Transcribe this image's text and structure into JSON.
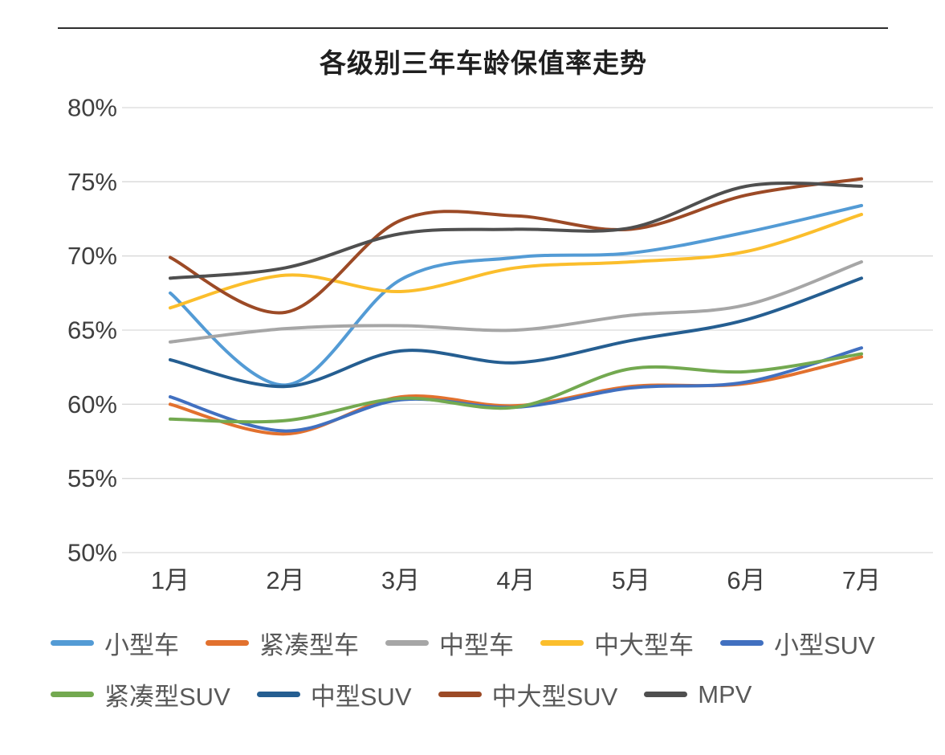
{
  "chart_data": {
    "type": "line",
    "title": "各级别三年车龄保值率走势",
    "categories": [
      "1月",
      "2月",
      "3月",
      "4月",
      "5月",
      "6月",
      "7月"
    ],
    "y_ticks": [
      {
        "label": "80%",
        "value": 80
      },
      {
        "label": "75%",
        "value": 75
      },
      {
        "label": "70%",
        "value": 70
      },
      {
        "label": "65%",
        "value": 65
      },
      {
        "label": "60%",
        "value": 60
      },
      {
        "label": "55%",
        "value": 55
      },
      {
        "label": "50%",
        "value": 50
      }
    ],
    "ylim": [
      50,
      80
    ],
    "unit": "%",
    "grid": "horizontal",
    "legend_position": "bottom",
    "legend_rows": [
      [
        0,
        1,
        2,
        3,
        4
      ],
      [
        5,
        6,
        7,
        8
      ]
    ],
    "series": [
      {
        "name": "小型车",
        "color": "#539BD5",
        "values": [
          67.5,
          61.3,
          68.4,
          69.9,
          70.2,
          71.6,
          73.4
        ]
      },
      {
        "name": "紧凑型车",
        "color": "#E2712E",
        "values": [
          60.0,
          58.0,
          60.5,
          59.9,
          61.2,
          61.4,
          63.2
        ]
      },
      {
        "name": "中型车",
        "color": "#A6A6A6",
        "values": [
          64.2,
          65.1,
          65.3,
          65.0,
          66.0,
          66.7,
          69.6
        ]
      },
      {
        "name": "中大型车",
        "color": "#FBBE2C",
        "values": [
          66.5,
          68.7,
          67.6,
          69.2,
          69.6,
          70.3,
          72.8
        ]
      },
      {
        "name": "小型SUV",
        "color": "#4170C0",
        "values": [
          60.5,
          58.2,
          60.3,
          59.8,
          61.1,
          61.5,
          63.8
        ]
      },
      {
        "name": "紧凑型SUV",
        "color": "#73A950",
        "values": [
          59.0,
          58.9,
          60.4,
          59.8,
          62.4,
          62.2,
          63.4
        ]
      },
      {
        "name": "中型SUV",
        "color": "#255E91",
        "values": [
          63.0,
          61.2,
          63.6,
          62.8,
          64.3,
          65.7,
          68.5
        ]
      },
      {
        "name": "中大型SUV",
        "color": "#9C4A26",
        "values": [
          69.9,
          66.2,
          72.4,
          72.7,
          71.8,
          74.1,
          75.2
        ]
      },
      {
        "name": "MPV",
        "color": "#4F4F4F",
        "values": [
          68.5,
          69.2,
          71.5,
          71.8,
          71.9,
          74.7,
          74.7
        ]
      }
    ]
  }
}
